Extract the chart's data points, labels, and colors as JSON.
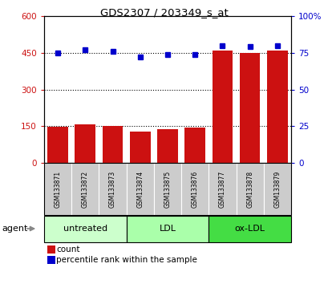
{
  "title": "GDS2307 / 203349_s_at",
  "categories": [
    "GSM133871",
    "GSM133872",
    "GSM133873",
    "GSM133874",
    "GSM133875",
    "GSM133876",
    "GSM133877",
    "GSM133878",
    "GSM133879"
  ],
  "bar_values": [
    148,
    158,
    150,
    128,
    138,
    143,
    460,
    450,
    460
  ],
  "percentile_values": [
    75,
    77,
    76,
    72,
    74,
    74,
    80,
    79,
    80
  ],
  "bar_color": "#cc1111",
  "dot_color": "#0000cc",
  "left_ylim": [
    0,
    600
  ],
  "right_ylim": [
    0,
    100
  ],
  "left_yticks": [
    0,
    150,
    300,
    450,
    600
  ],
  "left_ytick_labels": [
    "0",
    "150",
    "300",
    "450",
    "600"
  ],
  "right_yticks": [
    0,
    25,
    50,
    75,
    100
  ],
  "right_ytick_labels": [
    "0",
    "25",
    "50",
    "75",
    "100%"
  ],
  "grid_values": [
    150,
    300,
    450
  ],
  "groups": [
    {
      "label": "untreated",
      "start": 0,
      "end": 3,
      "color": "#ccffcc"
    },
    {
      "label": "LDL",
      "start": 3,
      "end": 6,
      "color": "#aaffaa"
    },
    {
      "label": "ox-LDL",
      "start": 6,
      "end": 9,
      "color": "#44dd44"
    }
  ],
  "agent_label": "agent",
  "legend_count_label": "count",
  "legend_pct_label": "percentile rank within the sample",
  "bg_color": "#ffffff",
  "plot_bg_color": "#ffffff",
  "tick_label_color_left": "#cc1111",
  "tick_label_color_right": "#0000cc",
  "xticklabel_bg": "#cccccc",
  "spine_color": "#888888"
}
